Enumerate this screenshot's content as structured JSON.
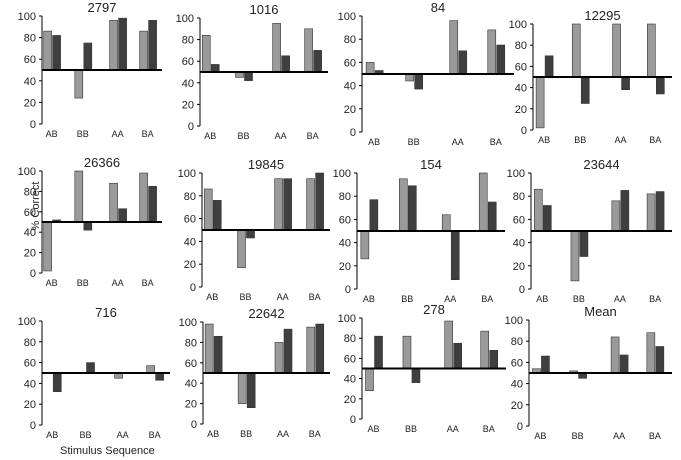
{
  "figure": {
    "ylabel": "% Correct",
    "xlabel": "Stimulus Sequence",
    "colors": {
      "series1": "#9a9a9a",
      "series2": "#3f3f3f",
      "stroke": "#333333",
      "axis": "#000000",
      "text": "#222222"
    }
  },
  "chart_data": [
    {
      "type": "bar",
      "title": "2797",
      "categories": [
        "AB",
        "BB",
        "AA",
        "BA"
      ],
      "ylim": [
        0,
        100
      ],
      "yticks": [
        0,
        20,
        40,
        60,
        80,
        100
      ],
      "baseline": 50,
      "series": [
        {
          "name": "series1",
          "values": [
            86,
            24,
            96,
            86
          ]
        },
        {
          "name": "series2",
          "values": [
            82,
            75,
            98,
            96
          ]
        }
      ]
    },
    {
      "type": "bar",
      "title": "1016",
      "categories": [
        "AB",
        "BB",
        "AA",
        "BA"
      ],
      "ylim": [
        0,
        100
      ],
      "yticks": [
        0,
        20,
        40,
        60,
        80,
        100
      ],
      "baseline": 50,
      "series": [
        {
          "name": "series1",
          "values": [
            84,
            45,
            95,
            90
          ]
        },
        {
          "name": "series2",
          "values": [
            57,
            42,
            65,
            70
          ]
        }
      ]
    },
    {
      "type": "bar",
      "title": "84",
      "categories": [
        "AB",
        "BB",
        "AA",
        "BA"
      ],
      "ylim": [
        0,
        100
      ],
      "yticks": [
        0,
        20,
        40,
        60,
        80,
        100
      ],
      "baseline": 50,
      "series": [
        {
          "name": "series1",
          "values": [
            60,
            44,
            96,
            88
          ]
        },
        {
          "name": "series2",
          "values": [
            53,
            37,
            70,
            75
          ]
        }
      ]
    },
    {
      "type": "bar",
      "title": "12295",
      "categories": [
        "AB",
        "BB",
        "AA",
        "BA"
      ],
      "ylim": [
        0,
        100
      ],
      "yticks": [
        0,
        20,
        40,
        60,
        80,
        100
      ],
      "baseline": 50,
      "series": [
        {
          "name": "series1",
          "values": [
            2,
            100,
            100,
            100
          ]
        },
        {
          "name": "series2",
          "values": [
            70,
            25,
            38,
            34
          ]
        }
      ]
    },
    {
      "type": "bar",
      "title": "26366",
      "categories": [
        "AB",
        "BB",
        "AA",
        "BA"
      ],
      "ylim": [
        0,
        100
      ],
      "yticks": [
        0,
        20,
        40,
        60,
        80,
        100
      ],
      "baseline": 50,
      "series": [
        {
          "name": "series1",
          "values": [
            2,
            100,
            88,
            98
          ]
        },
        {
          "name": "series2",
          "values": [
            52,
            42,
            63,
            85
          ]
        }
      ]
    },
    {
      "type": "bar",
      "title": "19845",
      "categories": [
        "AB",
        "BB",
        "AA",
        "BA"
      ],
      "ylim": [
        0,
        100
      ],
      "yticks": [
        0,
        20,
        40,
        60,
        80,
        100
      ],
      "baseline": 50,
      "series": [
        {
          "name": "series1",
          "values": [
            86,
            17,
            95,
            95
          ]
        },
        {
          "name": "series2",
          "values": [
            76,
            43,
            95,
            100
          ]
        }
      ]
    },
    {
      "type": "bar",
      "title": "154",
      "categories": [
        "AB",
        "BB",
        "AA",
        "BA"
      ],
      "ylim": [
        0,
        100
      ],
      "yticks": [
        0,
        20,
        40,
        60,
        80,
        100
      ],
      "baseline": 50,
      "series": [
        {
          "name": "series1",
          "values": [
            26,
            95,
            64,
            100
          ]
        },
        {
          "name": "series2",
          "values": [
            77,
            89,
            8,
            75
          ]
        }
      ]
    },
    {
      "type": "bar",
      "title": "23644",
      "categories": [
        "AB",
        "BB",
        "AA",
        "BA"
      ],
      "ylim": [
        0,
        100
      ],
      "yticks": [
        0,
        20,
        40,
        60,
        80,
        100
      ],
      "baseline": 50,
      "series": [
        {
          "name": "series1",
          "values": [
            86,
            7,
            76,
            82
          ]
        },
        {
          "name": "series2",
          "values": [
            72,
            28,
            85,
            84
          ]
        }
      ]
    },
    {
      "type": "bar",
      "title": "716",
      "categories": [
        "AB",
        "BB",
        "AA",
        "BA"
      ],
      "ylim": [
        0,
        100
      ],
      "yticks": [
        0,
        20,
        40,
        60,
        80,
        100
      ],
      "baseline": 50,
      "series": [
        {
          "name": "series1",
          "values": [
            50,
            50,
            45,
            57
          ]
        },
        {
          "name": "series2",
          "values": [
            32,
            60,
            50,
            43
          ]
        }
      ]
    },
    {
      "type": "bar",
      "title": "22642",
      "categories": [
        "AB",
        "BB",
        "AA",
        "BA"
      ],
      "ylim": [
        0,
        100
      ],
      "yticks": [
        0,
        20,
        40,
        60,
        80,
        100
      ],
      "baseline": 50,
      "series": [
        {
          "name": "series1",
          "values": [
            98,
            20,
            80,
            95
          ]
        },
        {
          "name": "series2",
          "values": [
            86,
            16,
            93,
            98
          ]
        }
      ]
    },
    {
      "type": "bar",
      "title": "278",
      "categories": [
        "AB",
        "BB",
        "AA",
        "BA"
      ],
      "ylim": [
        0,
        100
      ],
      "yticks": [
        0,
        20,
        40,
        60,
        80,
        100
      ],
      "baseline": 50,
      "series": [
        {
          "name": "series1",
          "values": [
            28,
            82,
            97,
            87
          ]
        },
        {
          "name": "series2",
          "values": [
            82,
            36,
            75,
            68
          ]
        }
      ]
    },
    {
      "type": "bar",
      "title": "Mean",
      "categories": [
        "AB",
        "BB",
        "AA",
        "BA"
      ],
      "ylim": [
        0,
        100
      ],
      "yticks": [
        0,
        20,
        40,
        60,
        80,
        100
      ],
      "baseline": 50,
      "series": [
        {
          "name": "series1",
          "values": [
            54,
            52,
            84,
            88
          ]
        },
        {
          "name": "series2",
          "values": [
            66,
            45,
            67,
            75
          ]
        }
      ]
    }
  ]
}
